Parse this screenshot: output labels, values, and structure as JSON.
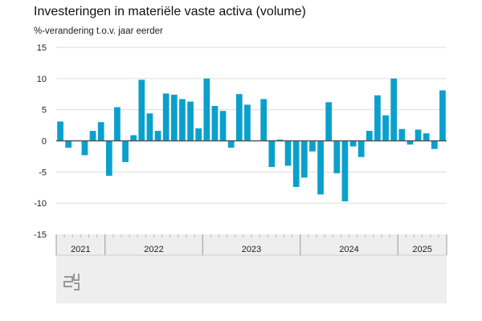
{
  "chart_data": {
    "type": "bar",
    "title": "Investeringen in materiële vaste activa (volume)",
    "ylabel": "%-verandering t.o.v. jaar eerder",
    "ylim": [
      -15,
      15
    ],
    "yticks": [
      15,
      10,
      5,
      0,
      -5,
      -10,
      -15
    ],
    "grid": true,
    "color": "#0aa0cc",
    "years": [
      {
        "label": "2021",
        "months": 6
      },
      {
        "label": "2022",
        "months": 12
      },
      {
        "label": "2023",
        "months": 12
      },
      {
        "label": "2024",
        "months": 12
      },
      {
        "label": "2025",
        "months": 6
      }
    ],
    "values": [
      3.1,
      -1.1,
      0,
      -2.3,
      1.6,
      3.0,
      -5.6,
      5.4,
      -3.4,
      0.9,
      9.8,
      4.4,
      1.6,
      7.6,
      7.4,
      6.7,
      6.3,
      2.0,
      10.0,
      5.6,
      4.8,
      -1.1,
      7.5,
      5.8,
      0,
      6.7,
      -4.2,
      0.2,
      -4.0,
      -7.4,
      -5.9,
      -1.7,
      -8.6,
      6.2,
      -5.2,
      -9.7,
      -0.9,
      -2.6,
      1.6,
      7.3,
      4.1,
      10.0,
      1.9,
      -0.6,
      1.8,
      1.2,
      -1.3,
      8.1
    ]
  }
}
